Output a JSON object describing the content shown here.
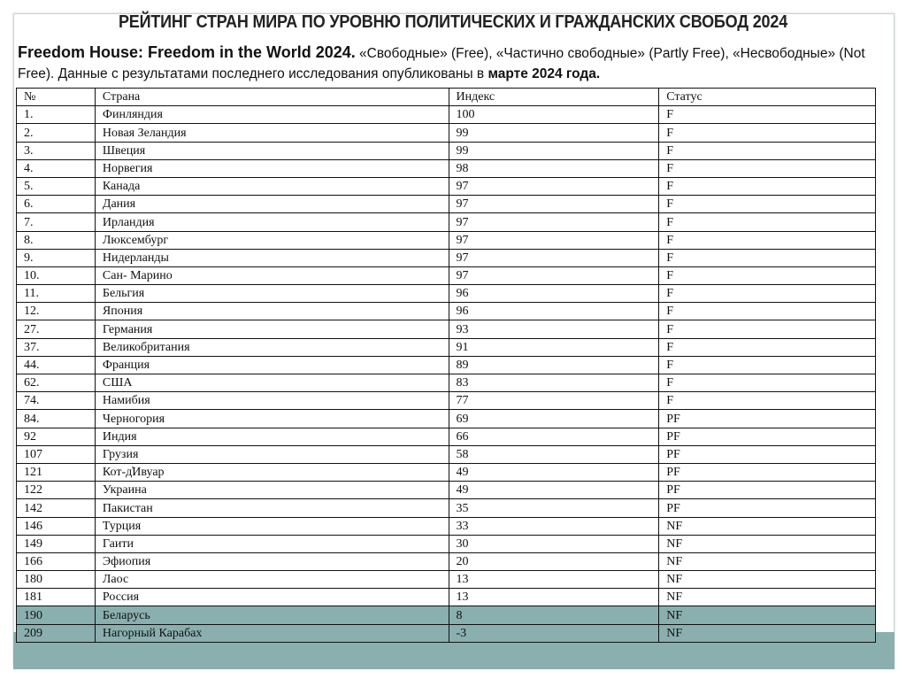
{
  "title": "РЕЙТИНГ СТРАН МИРА ПО УРОВНЮ ПОЛИТИЧЕСКИХ И ГРАЖДАНСКИХ СВОБОД 2024",
  "subtitle": {
    "source": "Freedom House: Freedom in the World 2024.",
    "text1": " «Свободные» (Free), «Частично свободные» (Partly Free), «Несвободные» (Not Free). Данные с результатами последнего исследования опубликованы в ",
    "date": "марте 2024 года."
  },
  "highlight_color": "#8aafaf",
  "table": {
    "headers": [
      "№",
      "Страна",
      "Индекс",
      "Статус"
    ],
    "rows": [
      [
        "1.",
        "Финляндия",
        "100",
        "F"
      ],
      [
        "2.",
        "Новая Зеландия",
        "99",
        "F"
      ],
      [
        "3.",
        "Швеция",
        "99",
        "F"
      ],
      [
        "4.",
        "Норвегия",
        "98",
        "F"
      ],
      [
        "5.",
        "Канада",
        "97",
        "F"
      ],
      [
        "6.",
        "Дания",
        "97",
        "F"
      ],
      [
        "7.",
        "Ирландия",
        "97",
        "F"
      ],
      [
        "8.",
        "Люксембург",
        "97",
        "F"
      ],
      [
        "9.",
        "Нидерланды",
        "97",
        "F"
      ],
      [
        "10.",
        "Сан- Марино",
        "97",
        "F"
      ],
      [
        "11.",
        "Бельгия",
        "96",
        "F"
      ],
      [
        "12.",
        "Япония",
        "96",
        "F"
      ],
      [
        "27.",
        "Германия",
        "93",
        "F"
      ],
      [
        "37.",
        "Великобритания",
        "91",
        "F"
      ],
      [
        "44.",
        "Франция",
        "89",
        "F"
      ],
      [
        "62.",
        "США",
        "83",
        "F"
      ],
      [
        "74.",
        "Намибия",
        "77",
        "F"
      ],
      [
        "84.",
        "Черногория",
        "69",
        "PF"
      ],
      [
        "92",
        "Индия",
        "66",
        "PF"
      ],
      [
        "107",
        "Грузия",
        "58",
        "PF"
      ],
      [
        "121",
        "Кот-д̕Ивуар",
        "49",
        "PF"
      ],
      [
        "122",
        "Украина",
        "49",
        "PF"
      ],
      [
        "142",
        "Пакистан",
        "35",
        "PF"
      ],
      [
        "146",
        "Турция",
        "33",
        "NF"
      ],
      [
        "149",
        "Гаити",
        "30",
        "NF"
      ],
      [
        "166",
        "Эфиопия",
        "20",
        "NF"
      ],
      [
        "180",
        "Лаос",
        "13",
        "NF"
      ],
      [
        "181",
        "Россия",
        "13",
        "NF"
      ],
      [
        "190",
        "Беларусь",
        "8",
        "NF"
      ],
      [
        "209",
        "Нагорный Карабах",
        "-3",
        "NF"
      ]
    ],
    "highlighted_rows": [
      "190",
      "209"
    ]
  }
}
